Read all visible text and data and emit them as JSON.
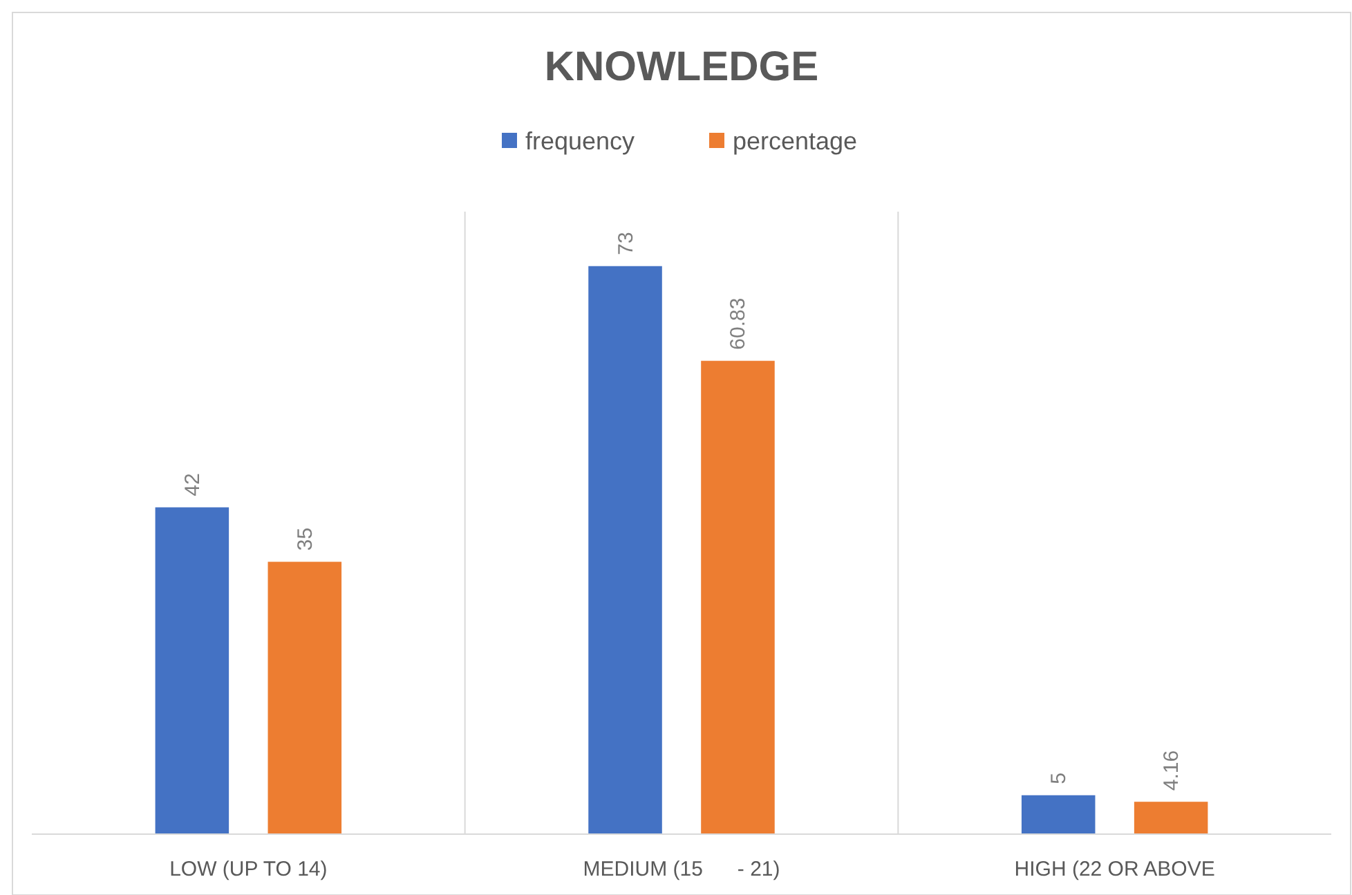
{
  "chart_data": {
    "type": "bar",
    "title": "KNOWLEDGE",
    "categories": [
      "LOW (UP TO 14)",
      "MEDIUM (15      - 21)",
      "HIGH (22 OR ABOVE"
    ],
    "series": [
      {
        "name": "frequency",
        "color": "#4472c4",
        "values": [
          42,
          73,
          5
        ]
      },
      {
        "name": "percentage",
        "color": "#ed7d31",
        "values": [
          35,
          60.83,
          4.16
        ]
      }
    ],
    "ylim": [
      0,
      80
    ],
    "tick_labels": "x",
    "data_labels": true,
    "grid": "x",
    "legend": "top"
  }
}
